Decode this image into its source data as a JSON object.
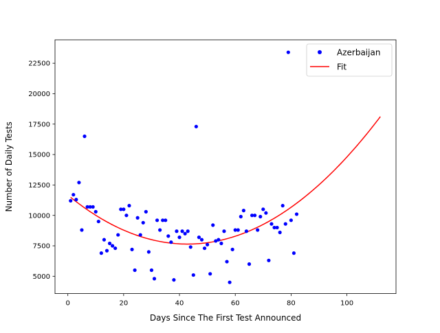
{
  "colors": {
    "scatter": "#0000ff",
    "fit": "#ff0000",
    "axis": "#000000",
    "background": "#ffffff"
  },
  "chart_data": {
    "type": "scatter",
    "title": "",
    "xlabel": "Days Since The First Test Announced",
    "ylabel": "Number of Daily Tests",
    "xlim": [
      -4.6,
      117.6
    ],
    "ylim": [
      3575,
      24425
    ],
    "x_ticks": [
      0,
      20,
      40,
      60,
      80,
      100
    ],
    "y_ticks": [
      5000,
      7500,
      10000,
      12500,
      15000,
      17500,
      20000,
      22500
    ],
    "grid": false,
    "legend_position": "top-right",
    "series": [
      {
        "name": "Azerbaijan",
        "kind": "scatter",
        "x": [
          1,
          2,
          3,
          4,
          5,
          6,
          7,
          8,
          9,
          10,
          11,
          12,
          13,
          14,
          15,
          16,
          17,
          18,
          19,
          20,
          21,
          22,
          23,
          24,
          25,
          26,
          27,
          28,
          29,
          30,
          31,
          32,
          33,
          34,
          35,
          36,
          37,
          38,
          39,
          40,
          41,
          42,
          43,
          44,
          45,
          46,
          47,
          48,
          49,
          50,
          51,
          52,
          53,
          54,
          55,
          56,
          57,
          58,
          59,
          60,
          61,
          62,
          63,
          64,
          65,
          66,
          67,
          68,
          69,
          70,
          71,
          72,
          73,
          74,
          75,
          76,
          77,
          78,
          79,
          80,
          81,
          82
        ],
        "y": [
          11200,
          11700,
          11300,
          12700,
          8800,
          16500,
          10700,
          10700,
          10700,
          10300,
          9500,
          6900,
          8000,
          7100,
          7700,
          7500,
          7300,
          8400,
          10500,
          10500,
          10000,
          10800,
          7200,
          5500,
          9800,
          8400,
          9400,
          10300,
          7000,
          5500,
          4800,
          9600,
          8800,
          9600,
          9600,
          8300,
          7800,
          4700,
          8700,
          8200,
          8700,
          8500,
          8700,
          7400,
          5100,
          17300,
          8200,
          8000,
          7300,
          7600,
          5200,
          9200,
          7900,
          8000,
          7700,
          8700,
          6200,
          4500,
          7200,
          8800,
          8800,
          9900,
          10400,
          8700,
          6000,
          10000,
          10000,
          8800,
          9900,
          10500,
          10200,
          6300,
          9300,
          9000,
          9000,
          8600,
          10800,
          9300,
          23400,
          9600,
          6900,
          10100
        ]
      },
      {
        "name": "Fit",
        "kind": "line",
        "coefficients": [
          11669,
          -187.8,
          2.1907
        ],
        "x_range": [
          1,
          112
        ]
      }
    ]
  }
}
